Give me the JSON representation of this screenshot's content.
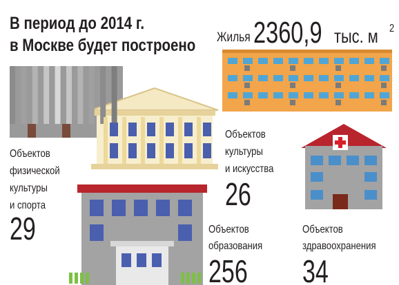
{
  "title": [
    "В период до 2014 г.",
    "в Москве будет построено"
  ],
  "housing": {
    "label": "Жилья",
    "value": "2360,9",
    "unit": "тыс. м",
    "unit_power": "2"
  },
  "items": [
    {
      "label": [
        "Объектов",
        "физической",
        "культуры",
        "и спорта"
      ],
      "value": 29
    },
    {
      "label": [
        "Объектов",
        "культуры",
        "и искусства"
      ],
      "value": 26
    },
    {
      "label": [
        "Объектов",
        "образования"
      ],
      "value": 256
    },
    {
      "label": [
        "Объектов",
        "здравоохранения"
      ],
      "value": 34
    }
  ]
}
